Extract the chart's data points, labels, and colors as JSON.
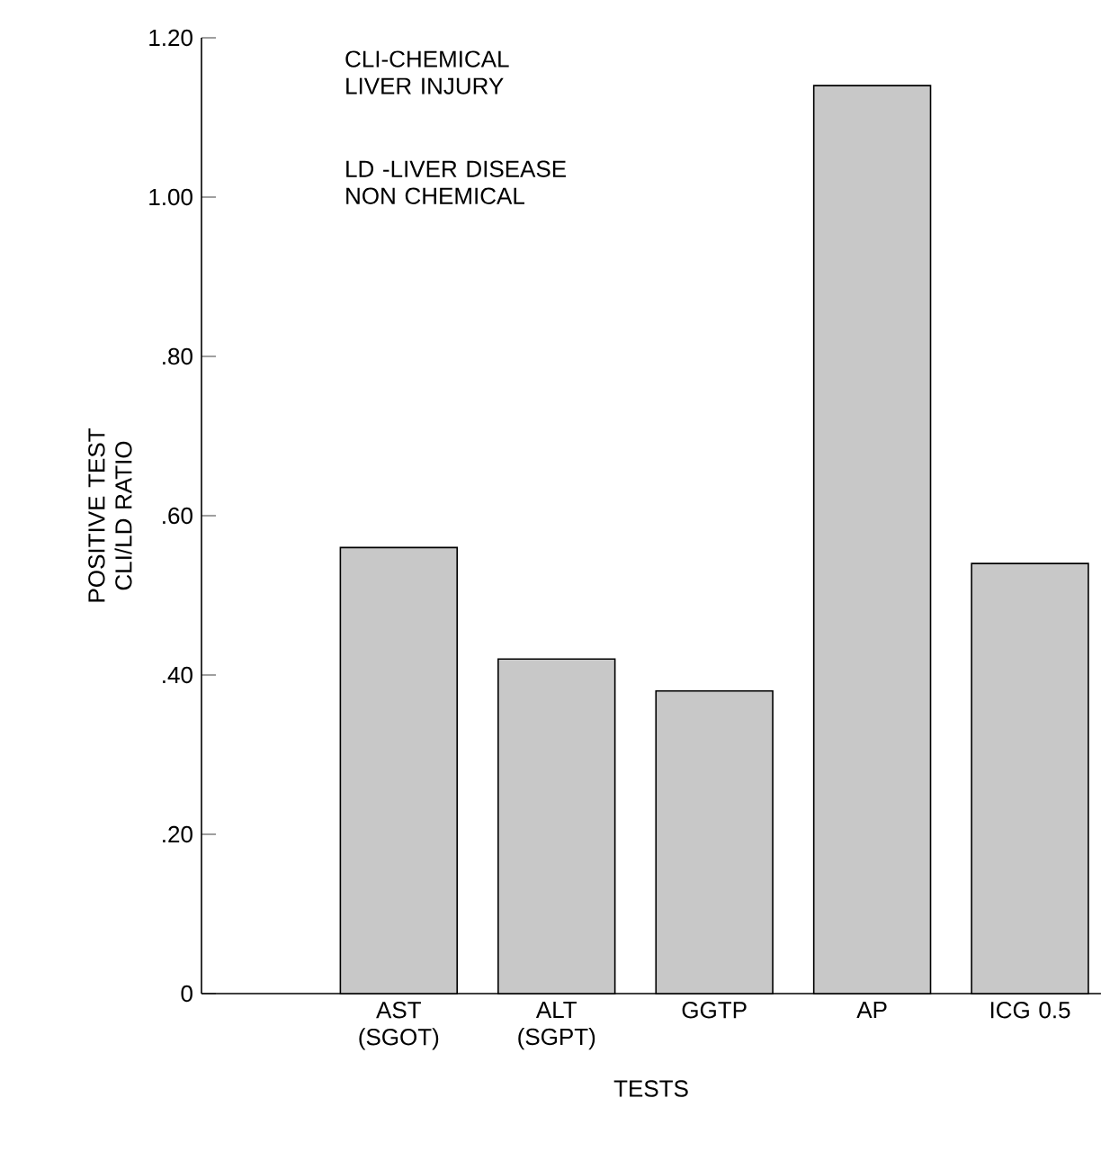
{
  "chart_data": {
    "type": "bar",
    "xlabel": "TESTS",
    "ylabel": "POSITIVE TEST CLI/LD RATIO",
    "categories": [
      "AST (SGOT)",
      "ALT (SGPT)",
      "GGTP",
      "AP",
      "ICG 0.5"
    ],
    "values": [
      0.56,
      0.42,
      0.38,
      1.14,
      0.54
    ],
    "color": "#c8c8c8",
    "ylim": [
      0,
      1.2
    ],
    "yticks": [
      0,
      {
        "value": 0.2,
        "label": ".20"
      },
      {
        "value": 0.4,
        "label": ".40"
      },
      {
        "value": 0.6,
        "label": ".60"
      },
      {
        "value": 0.8,
        "label": ".80"
      },
      {
        "value": 1.0,
        "label": "1.00"
      },
      {
        "value": 1.2,
        "label": "1.20"
      }
    ],
    "grid": false,
    "annotations": [
      "CLI-CHEMICAL LIVER INJURY",
      "LD -LIVER DISEASE NON CHEMICAL"
    ]
  }
}
